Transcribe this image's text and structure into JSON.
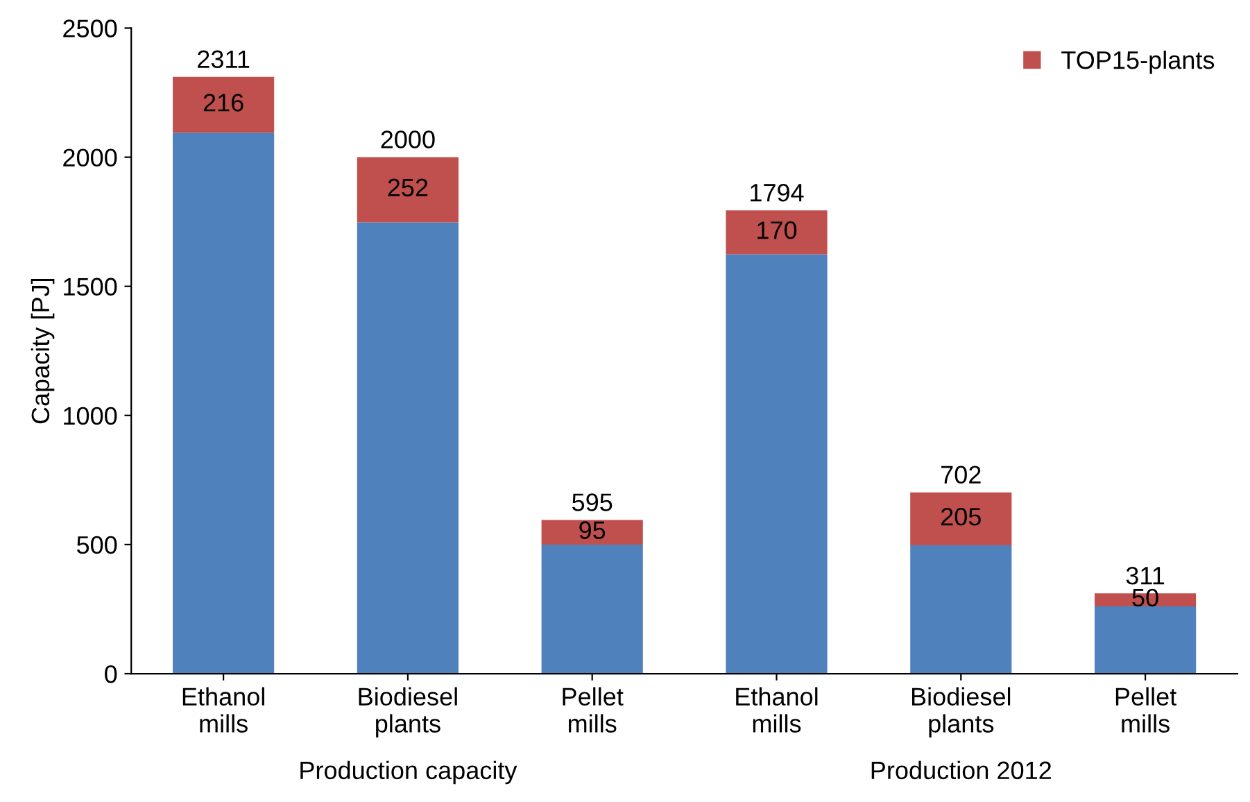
{
  "chart_data": {
    "type": "bar",
    "stacked": true,
    "ylabel": "Capacity [PJ]",
    "categories": [
      "Ethanol\nmills",
      "Biodiesel\nplants",
      "Pellet\nmills",
      "Ethanol\nmills",
      "Biodiesel\nplants",
      "Pellet\nmills"
    ],
    "series": [
      {
        "color": "#4f81bd",
        "values": [
          2095,
          1748,
          500,
          1624,
          497,
          261
        ]
      },
      {
        "name": "TOP15-plants",
        "color": "#c0504d",
        "values": [
          216,
          252,
          95,
          170,
          205,
          50
        ],
        "value_labels": [
          "216",
          "252",
          "95",
          "170",
          "205",
          "50"
        ]
      }
    ],
    "totals": [
      "2311",
      "2000",
      "595",
      "1794",
      "702",
      "311"
    ],
    "annotations": [
      "Production capacity",
      "Production 2012"
    ],
    "ylim": [
      0,
      2500
    ],
    "yticks": [
      0,
      500,
      1000,
      1500,
      2000,
      2500
    ],
    "grid": false,
    "legend": "top right"
  }
}
